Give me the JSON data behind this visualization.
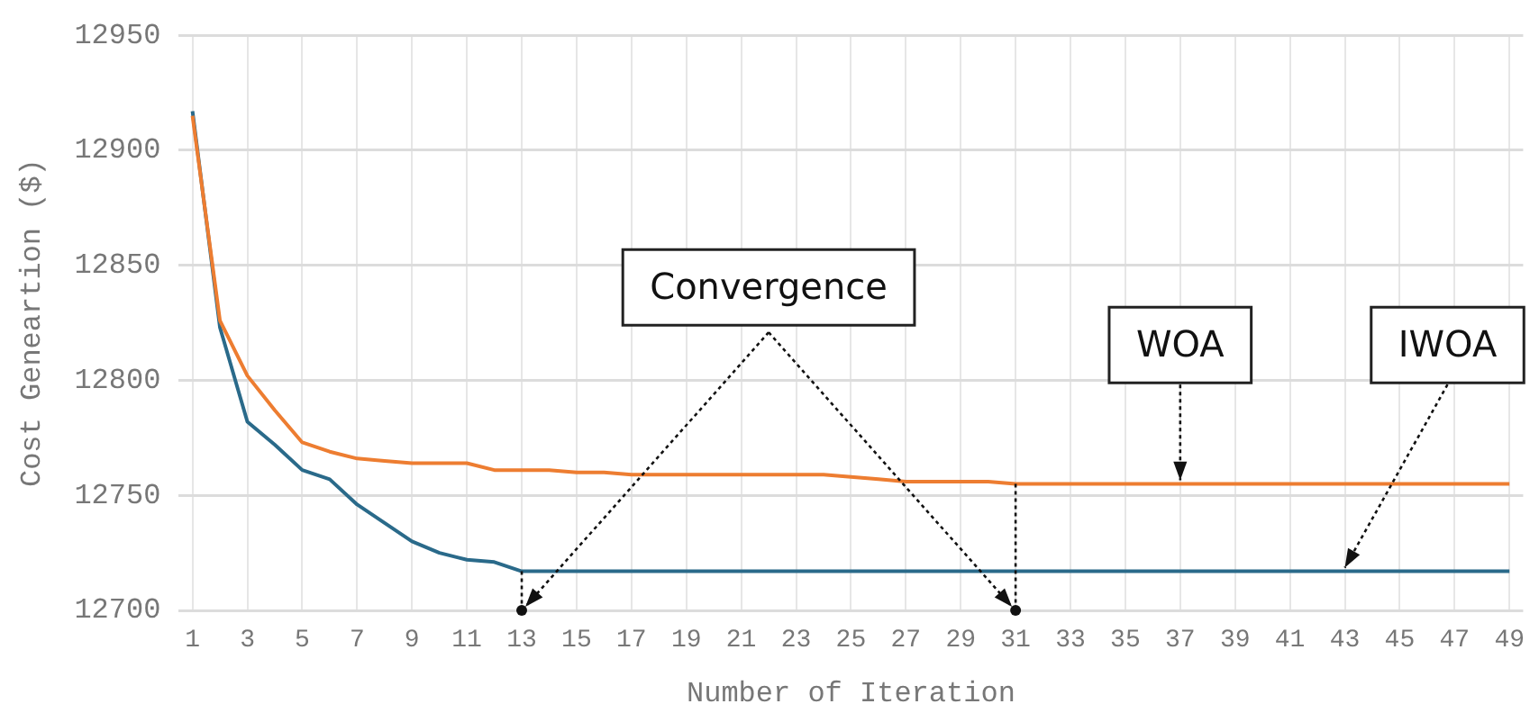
{
  "chart_data": {
    "type": "line",
    "xlabel": "Number of Iteration",
    "ylabel": "Cost Geneartion ($)",
    "x": [
      1,
      2,
      3,
      4,
      5,
      6,
      7,
      8,
      9,
      10,
      11,
      12,
      13,
      14,
      15,
      16,
      17,
      18,
      19,
      20,
      21,
      22,
      23,
      24,
      25,
      26,
      27,
      28,
      29,
      30,
      31,
      32,
      33,
      34,
      35,
      36,
      37,
      38,
      39,
      40,
      41,
      42,
      43,
      44,
      45,
      46,
      47,
      48,
      49
    ],
    "xlim": [
      0.5,
      49.5
    ],
    "xticks": [
      1,
      3,
      5,
      7,
      9,
      11,
      13,
      15,
      17,
      19,
      21,
      23,
      25,
      27,
      29,
      31,
      33,
      35,
      37,
      39,
      41,
      43,
      45,
      47,
      49
    ],
    "series": [
      {
        "color": "#ed7d31",
        "values": [
          12915,
          12826,
          12802,
          12787,
          12773,
          12769,
          12766,
          12765,
          12764,
          12764,
          12764,
          12761,
          12761,
          12761,
          12760,
          12760,
          12759,
          12759,
          12759,
          12759,
          12759,
          12759,
          12759,
          12759,
          12758,
          12757,
          12756,
          12756,
          12756,
          12756,
          12755,
          12755,
          12755,
          12755,
          12755,
          12755,
          12755,
          12755,
          12755,
          12755,
          12755,
          12755,
          12755,
          12755,
          12755,
          12755,
          12755,
          12755,
          12755
        ]
      },
      {
        "color": "#2a6a8a",
        "values": [
          12917,
          12823,
          12782,
          12772,
          12761,
          12757,
          12746,
          12738,
          12730,
          12725,
          12722,
          12721,
          12717,
          12717,
          12717,
          12717,
          12717,
          12717,
          12717,
          12717,
          12717,
          12717,
          12717,
          12717,
          12717,
          12717,
          12717,
          12717,
          12717,
          12717,
          12717,
          12717,
          12717,
          12717,
          12717,
          12717,
          12717,
          12717,
          12717,
          12717,
          12717,
          12717,
          12717,
          12717,
          12717,
          12717,
          12717,
          12717,
          12717
        ]
      }
    ],
    "ylim": [
      12700,
      12950
    ],
    "yticks": [
      12700,
      12750,
      12800,
      12850,
      12900,
      12950
    ],
    "grid": true,
    "legend": false,
    "marker": "none",
    "line_style": "solid",
    "annotations": [
      "Convergence",
      {
        "text": "WOA",
        "x": 37,
        "y": 12755
      },
      {
        "text": "IWOA",
        "x": 43,
        "y": 12717
      }
    ]
  }
}
